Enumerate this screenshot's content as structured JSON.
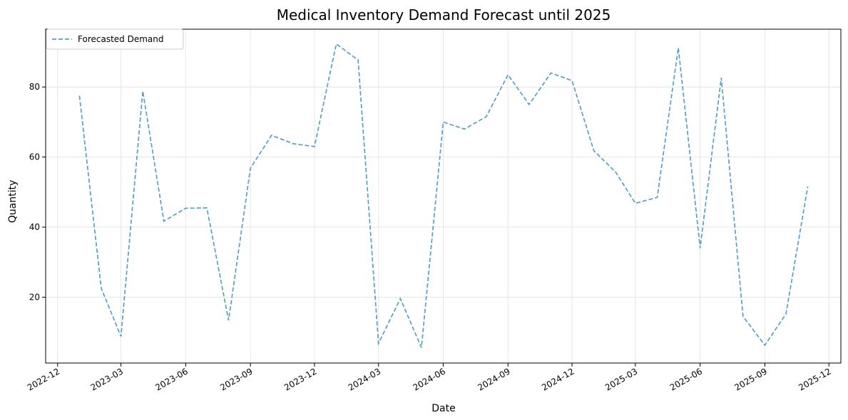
{
  "chart_data": {
    "type": "line",
    "title": "Medical Inventory Demand Forecast until 2025",
    "xlabel": "Date",
    "ylabel": "Quantity",
    "grid": true,
    "legend_position": "top-left",
    "xlim": [
      "2022-11-14",
      "2025-12-18"
    ],
    "ylim": [
      1.2,
      96.5
    ],
    "x_ticks": [
      "2022-12",
      "2023-03",
      "2023-06",
      "2023-09",
      "2023-12",
      "2024-03",
      "2024-06",
      "2024-09",
      "2024-12",
      "2025-03",
      "2025-06",
      "2025-09",
      "2025-12"
    ],
    "y_ticks": [
      20,
      40,
      60,
      80
    ],
    "series": [
      {
        "name": "Forecasted Demand",
        "color": "#5b9ec9",
        "line_style": "dashed",
        "x": [
          "2023-01-01",
          "2023-02-01",
          "2023-03-01",
          "2023-04-01",
          "2023-05-01",
          "2023-06-01",
          "2023-07-01",
          "2023-08-01",
          "2023-09-01",
          "2023-10-01",
          "2023-11-01",
          "2023-12-01",
          "2024-01-01",
          "2024-02-01",
          "2024-03-01",
          "2024-04-01",
          "2024-05-01",
          "2024-06-01",
          "2024-07-01",
          "2024-08-01",
          "2024-09-01",
          "2024-10-01",
          "2024-11-01",
          "2024-12-01",
          "2025-01-01",
          "2025-02-01",
          "2025-03-01",
          "2025-04-01",
          "2025-05-01",
          "2025-06-01",
          "2025-07-01",
          "2025-08-01",
          "2025-09-01",
          "2025-10-01",
          "2025-11-01"
        ],
        "y": [
          77.5,
          22.5,
          8.8,
          78.8,
          41.7,
          45.4,
          45.5,
          13.4,
          56.8,
          66.2,
          63.8,
          63.0,
          92.3,
          87.7,
          6.8,
          19.6,
          5.6,
          70.0,
          68.0,
          71.5,
          83.5,
          75.0,
          84.0,
          81.8,
          61.8,
          55.7,
          46.8,
          48.5,
          91.2,
          34.0,
          82.6,
          14.5,
          6.3,
          15.2,
          51.6
        ]
      }
    ]
  }
}
